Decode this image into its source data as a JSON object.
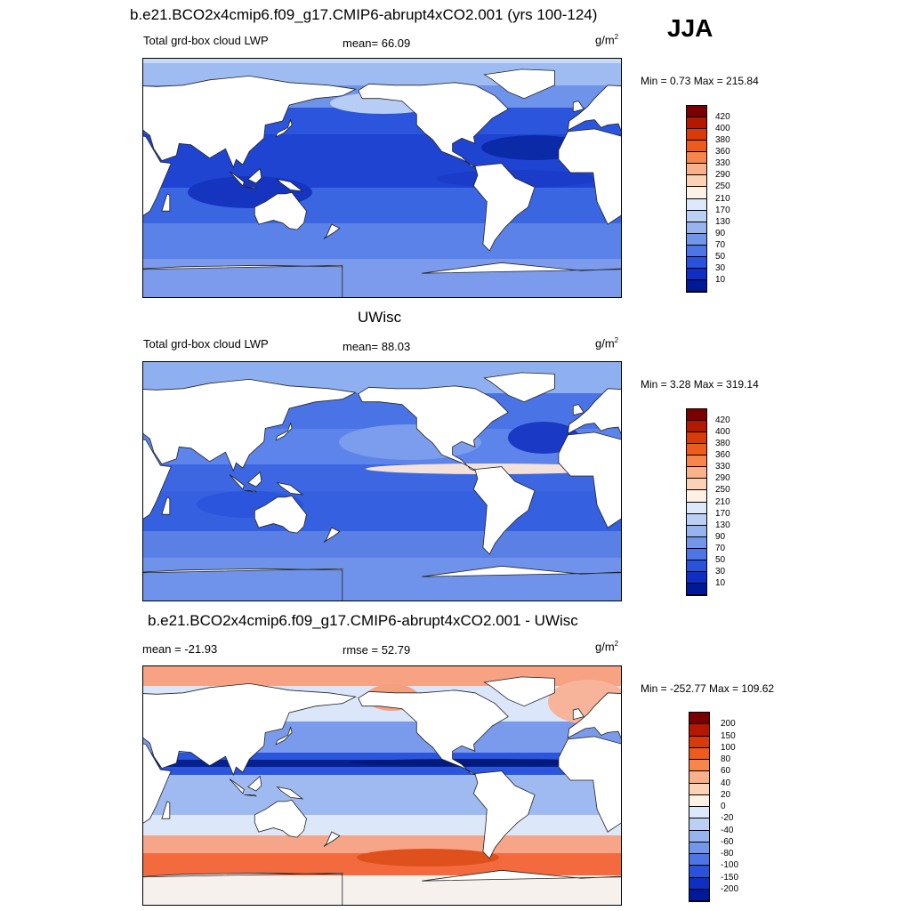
{
  "season": "JJA",
  "panels": [
    {
      "title": "b.e21.BCO2x4cmip6.f09_g17.CMIP6-abrupt4xCO2.001 (yrs 100-124)",
      "left_label": "Total grd-box cloud LWP",
      "center_label": "mean=  66.09",
      "unit": "g/m",
      "unit_exp": "2",
      "minmax": "Min =   0.73 Max = 215.84",
      "field": "model"
    },
    {
      "title": "UWisc",
      "left_label": "Total grd-box cloud LWP",
      "center_label": "mean=  88.03",
      "unit": "g/m",
      "unit_exp": "2",
      "minmax": "Min =   3.28 Max = 319.14",
      "field": "obs"
    },
    {
      "title": "b.e21.BCO2x4cmip6.f09_g17.CMIP6-abrupt4xCO2.001 - UWisc",
      "left_label": "mean = -21.93",
      "center_label": "rmse =  52.79",
      "unit": "g/m",
      "unit_exp": "2",
      "minmax": "Min = -252.77 Max = 109.62",
      "field": "diff"
    }
  ],
  "colorbar_abs": {
    "labels": [
      "420",
      "400",
      "380",
      "360",
      "330",
      "290",
      "250",
      "210",
      "170",
      "130",
      "90",
      "70",
      "50",
      "30",
      "10"
    ],
    "colors": [
      "#7a0000",
      "#b51800",
      "#d93a0a",
      "#ef5a1e",
      "#f7864c",
      "#fab08a",
      "#fcd2b6",
      "#fdf0e4",
      "#dde8fa",
      "#bccff5",
      "#98b4ee",
      "#7296ea",
      "#4d75e6",
      "#2a52db",
      "#0f2fc4",
      "#00189a"
    ]
  },
  "colorbar_diff": {
    "labels": [
      "200",
      "150",
      "100",
      "80",
      "60",
      "40",
      "20",
      "0",
      "-20",
      "-40",
      "-60",
      "-80",
      "-100",
      "-150",
      "-200"
    ],
    "colors": [
      "#7a0000",
      "#b51800",
      "#d93a0a",
      "#ef5a1e",
      "#f7864c",
      "#fab08a",
      "#fcd2b6",
      "#fdf0e4",
      "#dde8fa",
      "#bccff5",
      "#98b4ee",
      "#7296ea",
      "#4d75e6",
      "#2a52db",
      "#0f2fc4",
      "#00189a"
    ]
  }
}
